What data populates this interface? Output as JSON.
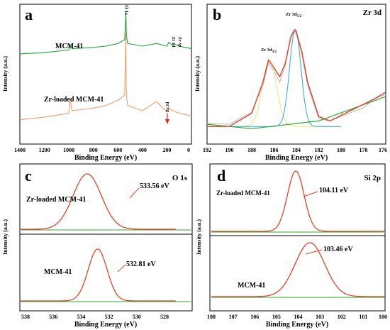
{
  "panels": [
    {
      "letter": "a",
      "panel_label": "",
      "xlabel": "Binding Energy (eV)",
      "ylabel": "Intensity (a.u.)",
      "xticks": [
        "1400",
        "1200",
        "1000",
        "800",
        "600",
        "400",
        "200",
        "0"
      ],
      "annotations": [
        {
          "text": "MCM-41"
        },
        {
          "text": "Zr-loaded MCM-41"
        },
        {
          "text": "O 1s"
        },
        {
          "text": "Zr 3d"
        },
        {
          "text": "Zr 3p"
        },
        {
          "text": "Zr 3d"
        }
      ]
    },
    {
      "letter": "b",
      "panel_label": "Zr 3d",
      "xlabel": "Binding Energy (eV)",
      "ylabel": "Intensity (a.u.)",
      "xticks": [
        "192",
        "190",
        "188",
        "186",
        "184",
        "182",
        "180",
        "178",
        "176"
      ],
      "annotations": [
        {
          "text": "Zr 3d",
          "sub": "3/2"
        },
        {
          "text": "Zr 3d",
          "sub": "5/2"
        }
      ]
    },
    {
      "letter": "c",
      "panel_label": "O 1s",
      "xlabel": "Binding Energy (eV)",
      "ylabel": "Intensity (a.u.)",
      "xticks": [
        "538",
        "536",
        "534",
        "532",
        "530",
        "528"
      ],
      "annotations": [
        {
          "text": "Zr-loaded MCM-41"
        },
        {
          "text": "533.56 eV"
        },
        {
          "text": "MCM-41"
        },
        {
          "text": "532.81 eV"
        }
      ]
    },
    {
      "letter": "d",
      "panel_label": "Si 2p",
      "xlabel": "Binding Energy (eV)",
      "ylabel": "Intensity (a.u.)",
      "xticks": [
        "108",
        "107",
        "106",
        "105",
        "104",
        "103",
        "102",
        "101",
        "100"
      ],
      "annotations": [
        {
          "text": "Zr-loaded MCM-41"
        },
        {
          "text": "104.11 eV"
        },
        {
          "text": "MCM-41"
        },
        {
          "text": "103.46 eV"
        }
      ]
    }
  ],
  "colors": {
    "mcm_survey": "#1fa83a",
    "zr_survey": "#f0a070",
    "fit": "#e8402a",
    "raw": "#b8b8b8",
    "peak1": "#f2e27a",
    "peak2": "#2aa8d8",
    "baseline": "#2fa82f",
    "arrow": "#e02020"
  },
  "chart_data": [
    {
      "type": "line",
      "panel": "a",
      "xlim": [
        1400,
        0
      ],
      "xlabel": "Binding Energy (eV)",
      "ylabel": "Intensity (a.u.)",
      "series": [
        {
          "name": "MCM-41",
          "x": [
            1400,
            1200,
            1000,
            990,
            975,
            800,
            700,
            600,
            545,
            535,
            532,
            528,
            520,
            400,
            285,
            200,
            185,
            160,
            150,
            100,
            0
          ],
          "y": [
            0.66,
            0.67,
            0.69,
            0.73,
            0.7,
            0.71,
            0.72,
            0.74,
            0.77,
            0.98,
            0.86,
            0.78,
            0.74,
            0.72,
            0.74,
            0.72,
            0.75,
            0.73,
            0.74,
            0.72,
            0.7
          ]
        },
        {
          "name": "Zr-loaded MCM-41",
          "x": [
            1400,
            1200,
            1000,
            990,
            975,
            800,
            700,
            600,
            545,
            535,
            532,
            528,
            520,
            400,
            285,
            200,
            185,
            180,
            150,
            100,
            0
          ],
          "y": [
            0.15,
            0.17,
            0.2,
            0.3,
            0.22,
            0.24,
            0.26,
            0.3,
            0.34,
            0.85,
            0.4,
            0.32,
            0.26,
            0.22,
            0.29,
            0.21,
            0.25,
            0.23,
            0.22,
            0.2,
            0.18
          ]
        }
      ]
    },
    {
      "type": "line",
      "panel": "b",
      "xlim": [
        192,
        176
      ],
      "xlabel": "Binding Energy (eV)",
      "ylabel": "Intensity (a.u.)",
      "series": [
        {
          "name": "raw",
          "x": [
            192,
            190,
            188,
            187,
            186.5,
            186,
            185.5,
            185,
            184.5,
            184.2,
            184,
            183.5,
            183,
            182,
            181,
            180,
            179,
            178,
            177,
            176
          ],
          "y": [
            0.08,
            0.07,
            0.18,
            0.42,
            0.62,
            0.55,
            0.45,
            0.6,
            0.85,
            0.9,
            0.88,
            0.7,
            0.42,
            0.12,
            0.1,
            0.14,
            0.18,
            0.22,
            0.3,
            0.34
          ]
        },
        {
          "name": "fit",
          "x": [
            192,
            190,
            188,
            187,
            186.5,
            186,
            185.5,
            185,
            184.5,
            184.2,
            184,
            183.5,
            183,
            182,
            181,
            180,
            179,
            178,
            177,
            176
          ],
          "y": [
            0.05,
            0.05,
            0.17,
            0.45,
            0.65,
            0.58,
            0.5,
            0.62,
            0.86,
            0.92,
            0.9,
            0.72,
            0.45,
            0.14,
            0.1,
            0.15,
            0.2,
            0.25,
            0.3,
            0.36
          ]
        },
        {
          "name": "peak 3d3/2",
          "center": 186.4,
          "height": 0.6
        },
        {
          "name": "peak 3d5/2",
          "center": 184.1,
          "height": 0.88
        }
      ]
    },
    {
      "type": "line",
      "panel": "c",
      "xlim": [
        539,
        527
      ],
      "xlabel": "Binding Energy (eV)",
      "ylabel": "Intensity (a.u.)",
      "series": [
        {
          "name": "Zr-loaded MCM-41",
          "peak": 533.56,
          "fwhm": 2.4
        },
        {
          "name": "MCM-41",
          "peak": 532.81,
          "fwhm": 1.6
        }
      ]
    },
    {
      "type": "line",
      "panel": "d",
      "xlim": [
        108,
        100
      ],
      "xlabel": "Binding Energy (eV)",
      "ylabel": "Intensity (a.u.)",
      "series": [
        {
          "name": "Zr-loaded MCM-41",
          "peak": 104.11,
          "fwhm": 0.9
        },
        {
          "name": "MCM-41",
          "peak": 103.46,
          "fwhm": 1.6
        }
      ]
    }
  ]
}
